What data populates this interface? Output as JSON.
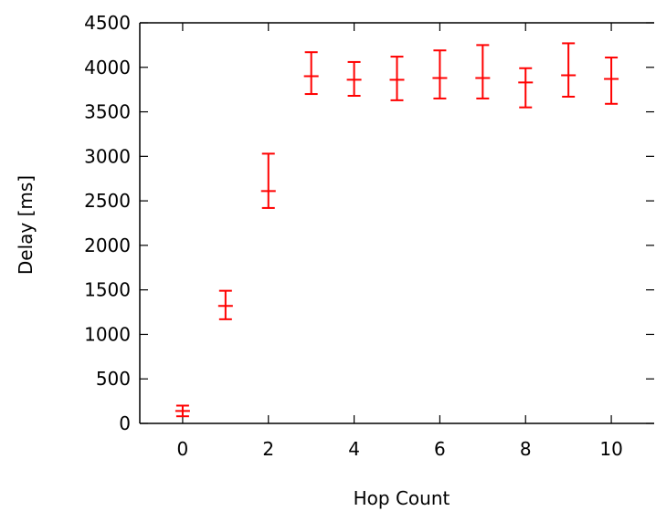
{
  "chart_data": {
    "type": "scatter",
    "style": "error-bars",
    "title": "",
    "xlabel": "Hop Count",
    "ylabel": "Delay [ms]",
    "xlim": [
      -1,
      11
    ],
    "ylim": [
      0,
      4500
    ],
    "xticks": [
      0,
      2,
      4,
      6,
      8,
      10
    ],
    "yticks": [
      0,
      500,
      1000,
      1500,
      2000,
      2500,
      3000,
      3500,
      4000,
      4500
    ],
    "grid": false,
    "color": "#ff0000",
    "points": [
      {
        "x": 0,
        "y": 140,
        "low": 80,
        "high": 200
      },
      {
        "x": 1,
        "y": 1320,
        "low": 1170,
        "high": 1490
      },
      {
        "x": 2,
        "y": 2610,
        "low": 2420,
        "high": 3030
      },
      {
        "x": 3,
        "y": 3900,
        "low": 3700,
        "high": 4170
      },
      {
        "x": 4,
        "y": 3860,
        "low": 3680,
        "high": 4060
      },
      {
        "x": 5,
        "y": 3860,
        "low": 3630,
        "high": 4120
      },
      {
        "x": 6,
        "y": 3880,
        "low": 3650,
        "high": 4190
      },
      {
        "x": 7,
        "y": 3880,
        "low": 3650,
        "high": 4250
      },
      {
        "x": 8,
        "y": 3830,
        "low": 3550,
        "high": 3990
      },
      {
        "x": 9,
        "y": 3910,
        "low": 3670,
        "high": 4270
      },
      {
        "x": 10,
        "y": 3870,
        "low": 3590,
        "high": 4110
      }
    ]
  }
}
